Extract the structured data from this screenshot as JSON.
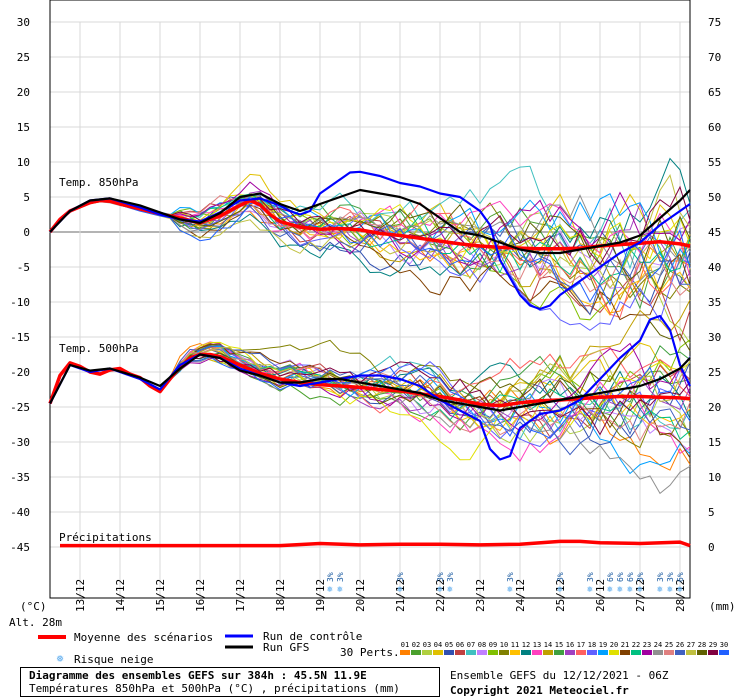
{
  "chart_data": {
    "type": "line",
    "title": "Diagramme des ensembles GEFS sur 384h : 45.5N 11.9E",
    "subtitle": "Températures 850hPa et 500hPa (°C) , précipitations (mm)",
    "run": "Ensemble GEFS du 12/12/2021 - 06Z",
    "copyright": "Copyright 2021 Meteociel.fr",
    "altitude": "Alt. 28m",
    "y_left_unit": "(°C)",
    "y_right_unit": "(mm)",
    "y_left_ticks": [
      30,
      25,
      20,
      15,
      10,
      5,
      0,
      -5,
      -10,
      -15,
      -20,
      -25,
      -30,
      -35,
      -40,
      -45
    ],
    "y_right_ticks": [
      75,
      70,
      65,
      60,
      55,
      50,
      45,
      40,
      35,
      30,
      25,
      20,
      15,
      10,
      5,
      0
    ],
    "ylim_left": [
      -45,
      30
    ],
    "ylim_right": [
      0,
      75
    ],
    "x_dates": [
      "13/12",
      "14/12",
      "15/12",
      "16/12",
      "17/12",
      "18/12",
      "19/12",
      "20/12",
      "21/12",
      "22/12",
      "23/12",
      "24/12",
      "25/12",
      "26/12",
      "27/12",
      "28/12"
    ],
    "xlim": [
      12.25,
      28.25
    ],
    "grid": true,
    "labels": {
      "t850": "Temp. 850hPa",
      "t500": "Temp. 500hPa",
      "precip": "Précipitations"
    },
    "legend": {
      "mean": "Moyenne des scénarios",
      "control": "Run de contrôle",
      "gfs": "Run GFS",
      "snow": "Risque neige",
      "perts": "30 Perts.",
      "pert_ids": [
        "01",
        "02",
        "03",
        "04",
        "05",
        "06",
        "07",
        "08",
        "09",
        "10",
        "11",
        "12",
        "13",
        "14",
        "15",
        "16",
        "17",
        "18",
        "19",
        "20",
        "21",
        "22",
        "23",
        "24",
        "25",
        "26",
        "27",
        "28",
        "29",
        "30"
      ]
    },
    "colors": {
      "mean": "#ff0000",
      "control": "#0000ff",
      "gfs": "#000000",
      "snow": "#6cb4f0",
      "perts": [
        "#ff8000",
        "#4aa02c",
        "#b0d040",
        "#e0c000",
        "#3050b0",
        "#c04040",
        "#40c0c0",
        "#c080ff",
        "#80c000",
        "#808000",
        "#ffc000",
        "#008080",
        "#ff40c0",
        "#c0a000",
        "#40a040",
        "#a040c0",
        "#ff6060",
        "#6060ff",
        "#00a0ff",
        "#e0e000",
        "#804000",
        "#00c080",
        "#a000a0",
        "#909090",
        "#e08080",
        "#4060c0",
        "#c0c040",
        "#606000",
        "#800040",
        "#2060ff"
      ]
    },
    "series": [
      {
        "name": "Moyenne des scénarios",
        "level": "850hPa",
        "x": [
          12.25,
          12.5,
          12.75,
          13,
          13.25,
          13.5,
          13.75,
          14,
          14.5,
          15,
          15.5,
          16,
          16.5,
          17,
          17.25,
          17.5,
          17.75,
          18,
          18.5,
          19,
          19.5,
          20,
          20.5,
          21,
          21.5,
          22,
          22.5,
          23,
          23.5,
          24,
          24.5,
          25,
          25.5,
          26,
          26.5,
          27,
          27.5,
          28,
          28.25
        ],
        "y": [
          0,
          1.8,
          3,
          3.6,
          4.2,
          4.5,
          4.4,
          4,
          3.3,
          2.6,
          2,
          1.3,
          2.3,
          3.8,
          4.5,
          3.9,
          2.5,
          1.5,
          0.7,
          0.4,
          0.5,
          0.3,
          -0.2,
          -0.5,
          -0.9,
          -1.3,
          -1.7,
          -2,
          -2.2,
          -2.3,
          -2.4,
          -2.4,
          -2.3,
          -2,
          -1.8,
          -1.6,
          -1.4,
          -1.7,
          -2
        ]
      },
      {
        "name": "Moyenne des scénarios",
        "level": "500hPa",
        "x": [
          12.25,
          12.5,
          12.75,
          13,
          13.25,
          13.5,
          13.75,
          14,
          14.25,
          14.5,
          14.75,
          15,
          15.25,
          15.5,
          15.75,
          16,
          16.25,
          16.5,
          17,
          17.5,
          18,
          18.5,
          19,
          19.5,
          20,
          20.5,
          21,
          21.5,
          22,
          22.5,
          23,
          23.5,
          24,
          24.5,
          25,
          25.5,
          26,
          26.5,
          27,
          27.5,
          28,
          28.25
        ],
        "y": [
          -24.5,
          -20.5,
          -18.7,
          -19.2,
          -20,
          -20.3,
          -19.7,
          -19.5,
          -20.3,
          -20.8,
          -22,
          -22.8,
          -21,
          -19.3,
          -18,
          -17.5,
          -17.5,
          -17.8,
          -19,
          -20.2,
          -21,
          -21.5,
          -21.8,
          -22,
          -22.2,
          -22.5,
          -22.7,
          -23.1,
          -23.5,
          -24,
          -24.6,
          -24.8,
          -24.4,
          -24.1,
          -24,
          -23.8,
          -23.6,
          -23.5,
          -23.5,
          -23.6,
          -23.7,
          -23.8
        ]
      },
      {
        "name": "Run de contrôle",
        "level": "850hPa",
        "x": [
          12.25,
          12.75,
          13.25,
          13.75,
          14.5,
          15,
          15.5,
          16,
          16.5,
          17,
          17.5,
          18,
          18.25,
          18.5,
          18.75,
          19,
          19.5,
          19.75,
          20,
          20.5,
          21,
          21.5,
          22,
          22.5,
          23,
          23.25,
          23.5,
          24,
          24.25,
          24.5,
          24.75,
          25,
          25.5,
          26,
          26.5,
          27,
          27.5,
          28,
          28.25
        ],
        "y": [
          0,
          3,
          4.5,
          4.8,
          3.5,
          2.5,
          1.8,
          1.5,
          2.8,
          4.5,
          4.8,
          3.8,
          3,
          2.5,
          3,
          5.5,
          7.5,
          8.5,
          8.6,
          8,
          7,
          6.5,
          5.5,
          5,
          3,
          1,
          -4,
          -9,
          -10.5,
          -11,
          -10.5,
          -9,
          -7,
          -5,
          -3,
          -1.5,
          1,
          3,
          4
        ]
      },
      {
        "name": "Run de contrôle",
        "level": "500hPa",
        "x": [
          12.25,
          12.75,
          13.25,
          13.75,
          14.5,
          15,
          15.5,
          16,
          16.5,
          17,
          17.5,
          18,
          18.5,
          19,
          19.5,
          20,
          20.5,
          21,
          21.5,
          22,
          22.5,
          23,
          23.25,
          23.5,
          23.75,
          24,
          24.5,
          25,
          25.5,
          26,
          26.5,
          27,
          27.25,
          27.5,
          27.75,
          28,
          28.25
        ],
        "y": [
          -24.5,
          -19,
          -20,
          -19.5,
          -21,
          -22.5,
          -19,
          -17.5,
          -18,
          -19.5,
          -20.5,
          -21.5,
          -22,
          -21.5,
          -21,
          -20.5,
          -20.5,
          -21,
          -22,
          -24,
          -25.5,
          -27,
          -31,
          -32.5,
          -32,
          -28,
          -26,
          -25.5,
          -24,
          -21,
          -18,
          -15.5,
          -12.5,
          -12,
          -14,
          -19,
          -22
        ]
      },
      {
        "name": "Run GFS",
        "level": "850hPa",
        "x": [
          12.25,
          12.75,
          13.25,
          13.75,
          14.5,
          15,
          15.5,
          16,
          16.5,
          17,
          17.5,
          18,
          18.5,
          19,
          19.5,
          20,
          20.5,
          21,
          21.5,
          22,
          22.5,
          23,
          23.5,
          24,
          24.5,
          25,
          25.5,
          26,
          26.5,
          27,
          27.5,
          28,
          28.25
        ],
        "y": [
          0,
          3,
          4.5,
          4.8,
          3.8,
          2.8,
          1.8,
          1.3,
          2.7,
          5,
          5.5,
          4,
          3,
          4,
          5,
          6,
          5.5,
          5,
          4,
          2,
          0,
          -0.5,
          -1.5,
          -2.5,
          -3,
          -3,
          -2.5,
          -2,
          -1.5,
          -0.5,
          2,
          4.5,
          6
        ]
      },
      {
        "name": "Run GFS",
        "level": "500hPa",
        "x": [
          12.25,
          12.75,
          13.25,
          13.75,
          14.5,
          15,
          15.5,
          16,
          16.5,
          17,
          17.5,
          18,
          18.5,
          19,
          19.5,
          20,
          20.5,
          21,
          21.5,
          22,
          22.5,
          23,
          23.5,
          24,
          24.5,
          25,
          25.5,
          26,
          26.5,
          27,
          27.5,
          28,
          28.25
        ],
        "y": [
          -24.5,
          -19,
          -19.8,
          -19.5,
          -20.8,
          -22,
          -19.5,
          -17.5,
          -18,
          -19.8,
          -20.5,
          -21.5,
          -21.5,
          -21,
          -21,
          -21.5,
          -22,
          -22.5,
          -23,
          -24,
          -24.5,
          -25,
          -25.5,
          -25,
          -24.5,
          -24,
          -23.5,
          -23,
          -22.5,
          -22,
          -21,
          -19.5,
          -18
        ]
      },
      {
        "name": "Moyenne des scénarios",
        "level": "Précipitations",
        "x": [
          12.5,
          13,
          14,
          15,
          16,
          17,
          18,
          19,
          20,
          21,
          22,
          23,
          24,
          25,
          25.5,
          26,
          27,
          28,
          28.25
        ],
        "y": [
          0.2,
          0.2,
          0.2,
          0.2,
          0.2,
          0.2,
          0.2,
          0.5,
          0.3,
          0.4,
          0.4,
          0.3,
          0.4,
          0.8,
          0.8,
          0.6,
          0.5,
          0.7,
          0.2
        ]
      }
    ],
    "snow_markers": [
      {
        "x": 19.25,
        "label": "3%"
      },
      {
        "x": 19.5,
        "label": "3%"
      },
      {
        "x": 21.0,
        "label": "3%"
      },
      {
        "x": 22.0,
        "label": "3%"
      },
      {
        "x": 22.25,
        "label": "3%"
      },
      {
        "x": 23.75,
        "label": "3%"
      },
      {
        "x": 25.0,
        "label": "3%"
      },
      {
        "x": 25.75,
        "label": "3%"
      },
      {
        "x": 26.25,
        "label": "6%"
      },
      {
        "x": 26.5,
        "label": "6%"
      },
      {
        "x": 26.75,
        "label": "6%"
      },
      {
        "x": 27.0,
        "label": "3%"
      },
      {
        "x": 27.5,
        "label": "3%"
      },
      {
        "x": 27.75,
        "label": "3%"
      },
      {
        "x": 28.0,
        "label": "6%"
      }
    ]
  }
}
